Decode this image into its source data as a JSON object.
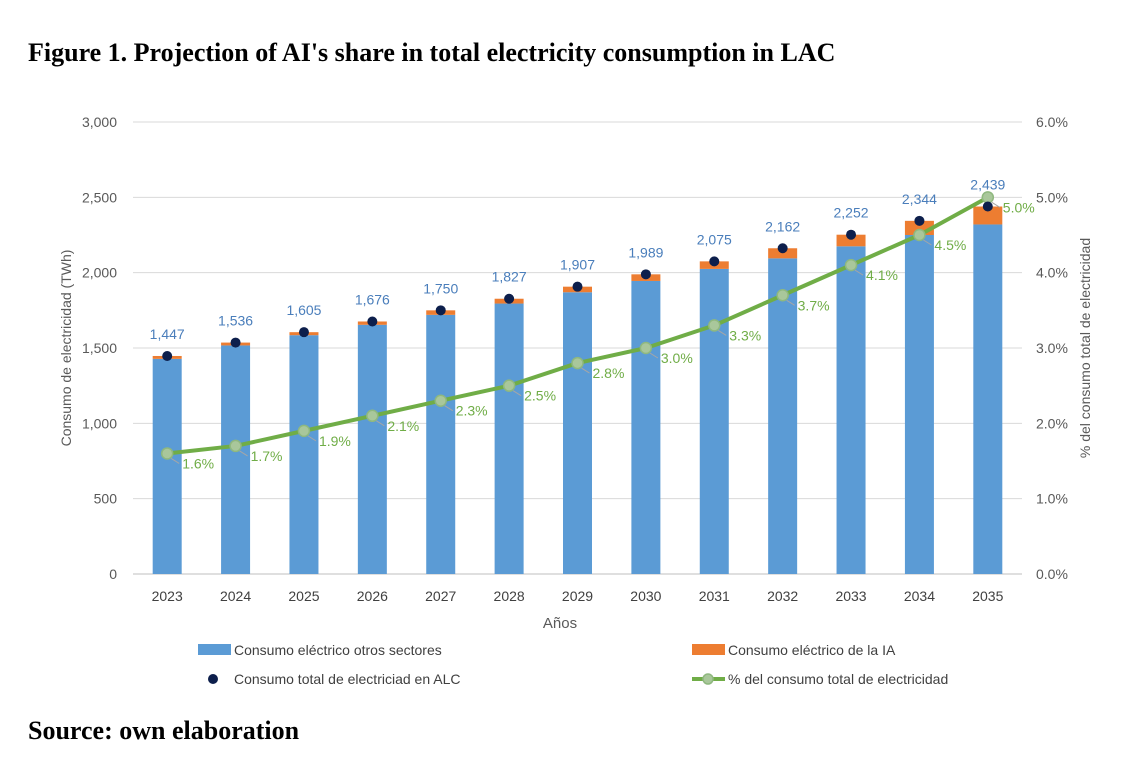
{
  "figure_title": "Figure 1. Projection of AI's share in total electricity consumption in LAC",
  "source": "Source: own elaboration",
  "colors": {
    "bar_other": "#5b9bd5",
    "bar_ai": "#ed7d31",
    "total_dot": "#0d1f4c",
    "line": "#70ad47",
    "line_marker": "#a9c79b",
    "value_label": "#4a7ebb",
    "pct_label": "#70ad47",
    "axis_text": "#595959",
    "grid": "#d9d9d9"
  },
  "chart_data": {
    "type": "bar",
    "categories": [
      "2023",
      "2024",
      "2025",
      "2026",
      "2027",
      "2028",
      "2029",
      "2030",
      "2031",
      "2032",
      "2033",
      "2034",
      "2035"
    ],
    "series": [
      {
        "name": "Consumo eléctrico otros sectores",
        "kind": "bar",
        "values": [
          1428,
          1517,
          1585,
          1654,
          1720,
          1795,
          1870,
          1945,
          2025,
          2095,
          2175,
          2250,
          2320
        ]
      },
      {
        "name": "Consumo eléctrico de la IA",
        "kind": "bar",
        "values": [
          19,
          19,
          20,
          22,
          30,
          32,
          37,
          44,
          50,
          67,
          77,
          94,
          119
        ]
      },
      {
        "name": "Consumo total de electriciad en ALC",
        "kind": "scatter",
        "values": [
          1447,
          1536,
          1605,
          1676,
          1750,
          1827,
          1907,
          1989,
          2075,
          2162,
          2252,
          2344,
          2439
        ]
      },
      {
        "name": "% del consumo total de electricidad",
        "kind": "line",
        "axis": "right",
        "values": [
          1.6,
          1.7,
          1.9,
          2.1,
          2.3,
          2.5,
          2.8,
          3.0,
          3.3,
          3.7,
          4.1,
          4.5,
          5.0
        ]
      }
    ],
    "total_labels": [
      "1,447",
      "1,536",
      "1,605",
      "1,676",
      "1,750",
      "1,827",
      "1,907",
      "1,989",
      "2,075",
      "2,162",
      "2,252",
      "2,344",
      "2,439"
    ],
    "pct_labels": [
      "1.6%",
      "1.7%",
      "1.9%",
      "2.1%",
      "2.3%",
      "2.5%",
      "2.8%",
      "3.0%",
      "3.3%",
      "3.7%",
      "4.1%",
      "4.5%",
      "5.0%"
    ],
    "xlabel": "Años",
    "ylabel": "Consumo de electricidad (TWh)",
    "ylabel_right": "% del consumo total de electricidad",
    "ylim": [
      0,
      3000
    ],
    "ylim_right": [
      0,
      6
    ],
    "yticks": [
      0,
      500,
      1000,
      1500,
      2000,
      2500,
      3000
    ],
    "ytick_labels": [
      "0",
      "500",
      "1,000",
      "1,500",
      "2,000",
      "2,500",
      "3,000"
    ],
    "yticks_right": [
      0,
      1,
      2,
      3,
      4,
      5,
      6
    ],
    "ytick_labels_right": [
      "0.0%",
      "1.0%",
      "2.0%",
      "3.0%",
      "4.0%",
      "5.0%",
      "6.0%"
    ],
    "grid": true,
    "legend_position": "bottom",
    "legend": [
      {
        "label": "Consumo eléctrico otros sectores",
        "symbol": "bar-other"
      },
      {
        "label": "Consumo eléctrico de la IA",
        "symbol": "bar-ai"
      },
      {
        "label": "Consumo total de electriciad en ALC",
        "symbol": "dot"
      },
      {
        "label": "% del consumo total de electricidad",
        "symbol": "line"
      }
    ]
  }
}
